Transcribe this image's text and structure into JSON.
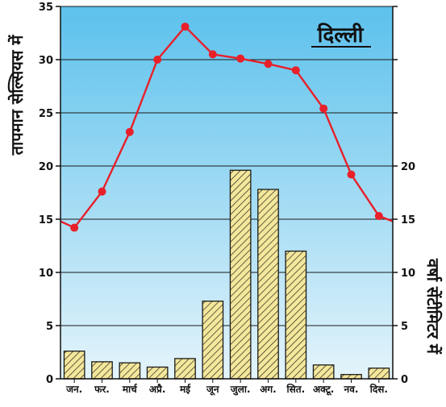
{
  "chart_data": {
    "type": "bar+line",
    "title": "दिल्ली",
    "categories": [
      "जन.",
      "फर.",
      "मार्च",
      "अप्रै.",
      "मई",
      "जून",
      "जुला.",
      "अग.",
      "सित.",
      "अक्टू.",
      "नव.",
      "दिस."
    ],
    "series": [
      {
        "name": "तापमान सेल्सियस में",
        "type": "line",
        "axis": "left",
        "values": [
          14.2,
          17.6,
          23.2,
          30.0,
          33.1,
          30.5,
          30.1,
          29.6,
          29.0,
          25.4,
          19.2,
          15.3
        ],
        "color": "#e8202a"
      },
      {
        "name": "वर्षा सेंटीमिटर में",
        "type": "bar",
        "axis": "right",
        "values": [
          2.6,
          1.6,
          1.5,
          1.1,
          1.9,
          7.3,
          19.6,
          17.8,
          12.0,
          1.3,
          0.4,
          1.0
        ],
        "color": "#f5e79a"
      }
    ],
    "ylabel": "तापमान सेल्सियस में",
    "y2label": "वर्षा सेंटीमिटर में",
    "ylim": [
      0,
      35
    ],
    "yticks": [
      0,
      5,
      10,
      15,
      20,
      25,
      30,
      35
    ],
    "y2lim": [
      0,
      35
    ],
    "y2ticks": [
      0,
      5,
      10,
      15,
      20
    ],
    "grid": true,
    "colors": {
      "background_top": "#5cc1ec",
      "background_bottom": "#e4f4fb",
      "line": "#e8202a",
      "bar_fill": "#f5e79a",
      "hatch": "#222222"
    }
  }
}
